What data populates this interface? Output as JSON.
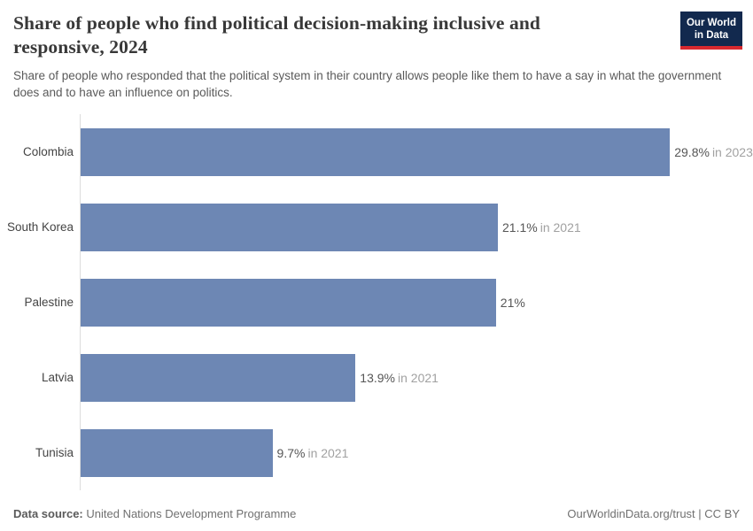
{
  "header": {
    "title": "Share of people who find political decision-making inclusive and responsive, 2024",
    "logo": {
      "line1": "Our World",
      "line2": "in Data"
    }
  },
  "subtitle": "Share of people who responded that the political system in their country allows people like them to have a say in what the government does and to have an influence on politics.",
  "chart_data": {
    "type": "bar",
    "orientation": "horizontal",
    "categories": [
      "Colombia",
      "South Korea",
      "Palestine",
      "Latvia",
      "Tunisia"
    ],
    "values": [
      29.8,
      21.1,
      21,
      13.9,
      9.7
    ],
    "value_labels": [
      "29.8%",
      "21.1%",
      "21%",
      "13.9%",
      "9.7%"
    ],
    "year_notes": [
      "in 2023",
      "in 2021",
      "",
      "in 2021",
      "in 2021"
    ],
    "xlim": [
      0,
      34
    ],
    "grid": false,
    "bar_color": "#6d87b4",
    "axis_line_color": "#dcdcdc",
    "title": "Share of people who find political decision-making inclusive and responsive, 2024",
    "xlabel": "",
    "ylabel": ""
  },
  "footer": {
    "source_label": "Data source:",
    "source_value": "United Nations Development Programme",
    "right_text": "OurWorldinData.org/trust | CC BY"
  },
  "colors": {
    "bar": "#6d87b4",
    "logo_background": "#12294e",
    "logo_stripe": "#d8292f",
    "value_number": "#565656",
    "value_year": "#a1a1a1"
  }
}
